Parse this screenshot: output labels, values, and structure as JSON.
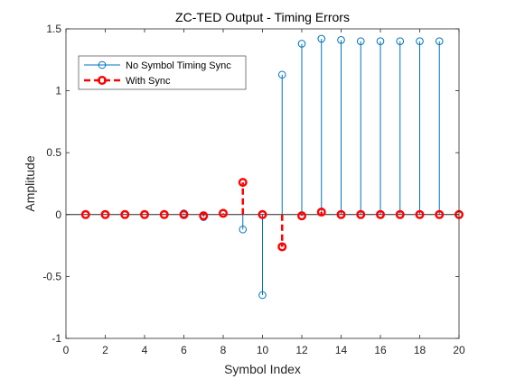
{
  "chart_data": {
    "type": "stem",
    "title": "ZC-TED Output - Timing Errors",
    "xlabel": "Symbol Index",
    "ylabel": "Amplitude",
    "xlim": [
      0,
      20
    ],
    "ylim": [
      -1,
      1.5
    ],
    "xticks": [
      0,
      2,
      4,
      6,
      8,
      10,
      12,
      14,
      16,
      18,
      20
    ],
    "xtick_labels": [
      "0",
      "2",
      "4",
      "6",
      "8",
      "10",
      "12",
      "14",
      "16",
      "18",
      "20"
    ],
    "yticks": [
      -1,
      -0.5,
      0,
      0.5,
      1,
      1.5
    ],
    "ytick_labels": [
      "-1",
      "-0.5",
      "0",
      "0.5",
      "1",
      "1.5"
    ],
    "grid": false,
    "legend_position": "top-left",
    "series": [
      {
        "name": "No Symbol Timing Sync",
        "style": "solid stem, open circle markers",
        "color": "#0072BD",
        "x": [
          1,
          2,
          3,
          4,
          5,
          6,
          7,
          8,
          9,
          10,
          11,
          12,
          13,
          14,
          15,
          16,
          17,
          18,
          19,
          20
        ],
        "values": [
          0,
          0,
          0,
          0,
          0,
          0.01,
          -0.02,
          0.01,
          -0.12,
          -0.65,
          1.13,
          1.38,
          1.42,
          1.41,
          1.4,
          1.4,
          1.4,
          1.4,
          1.4,
          0
        ]
      },
      {
        "name": "With Sync",
        "style": "dashed thick stem, bold open circle markers",
        "color": "#FF0000",
        "x": [
          1,
          2,
          3,
          4,
          5,
          6,
          7,
          8,
          9,
          10,
          11,
          12,
          13,
          14,
          15,
          16,
          17,
          18,
          19,
          20
        ],
        "values": [
          0,
          0,
          0,
          0,
          0,
          0,
          -0.01,
          0.01,
          0.26,
          0,
          -0.26,
          -0.01,
          0.02,
          0,
          0,
          0,
          0,
          0,
          0,
          0
        ]
      }
    ]
  }
}
